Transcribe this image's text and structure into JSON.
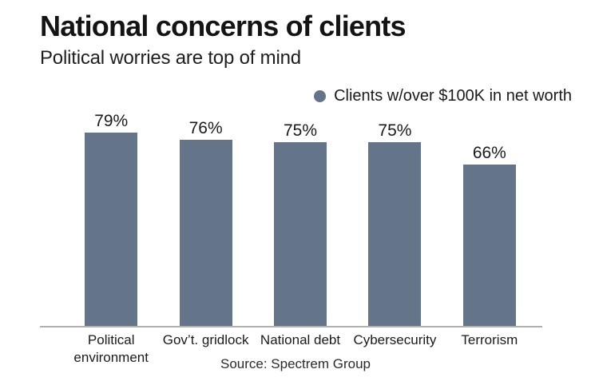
{
  "header": {
    "title": "National concerns of clients",
    "subtitle": "Political worries are top of mind"
  },
  "legend": {
    "label": "Clients w/over $100K in net worth"
  },
  "chart_data": {
    "type": "bar",
    "title": "National concerns of clients",
    "subtitle": "Political worries are top of mind",
    "categories": [
      "Political environment",
      "Gov’t. gridlock",
      "National debt",
      "Cybersecurity",
      "Terrorism"
    ],
    "values": [
      79,
      76,
      75,
      75,
      66
    ],
    "value_labels": [
      "79%",
      "76%",
      "75%",
      "75%",
      "66%"
    ],
    "unit": "%",
    "ylim": [
      0,
      100
    ],
    "grid": false,
    "legend_entries": [
      "Clients w/over $100K in net worth"
    ],
    "legend_position": "top-right",
    "bar_color": "#647489",
    "axis_line_color": "#b0b0b0"
  },
  "source": {
    "text": "Source: Spectrem Group"
  }
}
